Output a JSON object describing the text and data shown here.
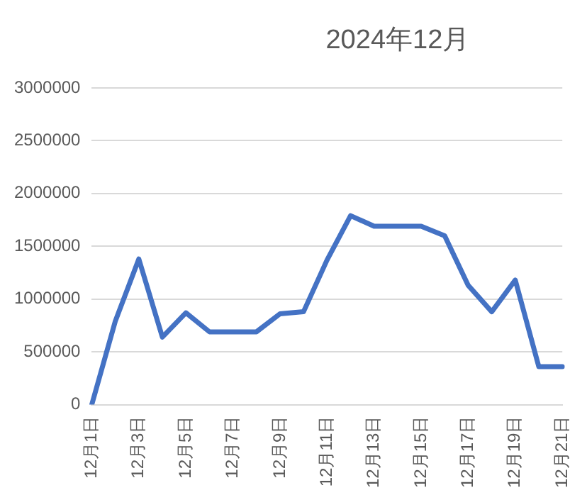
{
  "chart_data": {
    "type": "line",
    "title": "2024年12月",
    "categories": [
      "12月1日",
      null,
      "12月3日",
      null,
      "12月5日",
      null,
      "12月7日",
      null,
      "12月9日",
      null,
      "12月11日",
      null,
      "12月13日",
      null,
      "12月15日",
      null,
      "12月17日",
      null,
      "12月19日",
      null,
      "12月21日"
    ],
    "series": [
      {
        "color": "#4472c4",
        "values": [
          0,
          790000,
          1380000,
          640000,
          870000,
          690000,
          690000,
          690000,
          860000,
          880000,
          1370000,
          1790000,
          1690000,
          1690000,
          1690000,
          1600000,
          1130000,
          880000,
          1180000,
          360000,
          360000
        ]
      }
    ],
    "ylim": [
      0,
      3000000
    ],
    "yticks": [
      0,
      500000,
      1000000,
      1500000,
      2000000,
      2500000,
      3000000
    ],
    "grid": "y",
    "marker": "none",
    "line_style": "solid"
  }
}
